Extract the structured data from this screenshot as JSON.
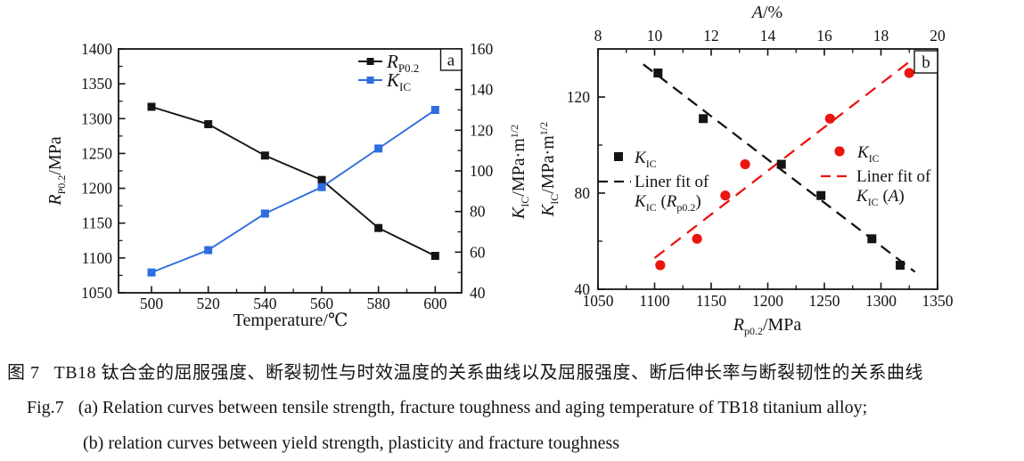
{
  "caption": {
    "zh_label": "图 7",
    "zh_text": "TB18 钛合金的屈服强度、断裂韧性与时效温度的关系曲线以及屈服强度、断后伸长率与断裂韧性的关系曲线",
    "en1_label": "Fig.7",
    "en1_text": "(a) Relation curves between tensile strength, fracture toughness and aging temperature of TB18 titanium alloy;",
    "en2_text": "(b) relation curves between yield strength, plasticity and fracture toughness"
  },
  "colors": {
    "axis": "#141414",
    "black_series": "#141414",
    "blue_series": "#2e6ce0",
    "red_series": "#ea150c"
  },
  "chart_data": [
    {
      "id": "a",
      "type": "line",
      "panel_label": "a",
      "xlabel": "Temperature/℃",
      "x_ticks": [
        500,
        520,
        540,
        560,
        580,
        600
      ],
      "xlim": [
        490,
        609
      ],
      "y_left": {
        "label": "*R*_{P0.2}/MPa",
        "ticks": [
          1050,
          1100,
          1150,
          1200,
          1250,
          1300,
          1350,
          1400
        ],
        "lim": [
          1050,
          1400
        ]
      },
      "y_right": {
        "label": "*K*_{IC}/MPa·m^{1/2}",
        "ticks": [
          40,
          60,
          80,
          100,
          120,
          140,
          160
        ],
        "lim": [
          40,
          160
        ]
      },
      "x": [
        500,
        520,
        540,
        560,
        580,
        600
      ],
      "series": [
        {
          "name": "*R*_{P0.2}",
          "axis": "left",
          "color": "black",
          "marker": "square",
          "values": [
            1317,
            1292,
            1247,
            1212,
            1143,
            1103
          ]
        },
        {
          "name": "*K*_{IC}",
          "axis": "right",
          "color": "blue",
          "marker": "square",
          "values": [
            50,
            61,
            79,
            92,
            111,
            130
          ]
        }
      ],
      "legend_position": "top-right-inside",
      "grid": false
    },
    {
      "id": "b",
      "type": "scatter",
      "panel_label": "b",
      "top_axis": {
        "label": "*A*/%",
        "ticks": [
          8,
          10,
          12,
          14,
          16,
          18,
          20
        ],
        "lim": [
          8,
          20
        ]
      },
      "bottom_axis": {
        "label": "*R*_{p0.2}/MPa",
        "ticks": [
          1050,
          1100,
          1150,
          1200,
          1250,
          1300,
          1350
        ],
        "lim": [
          1050,
          1350
        ]
      },
      "y_axis": {
        "label": "*K*_{IC}/MPa·m^{1/2}",
        "ticks": [
          40,
          80,
          120
        ],
        "minor_ticks": [
          60,
          100,
          140
        ],
        "lim": [
          40,
          140
        ]
      },
      "series": [
        {
          "name": "*K*_{IC}",
          "marker": "square",
          "color": "black",
          "x_axis": "bottom",
          "points": [
            [
              1103,
              130
            ],
            [
              1143,
              111
            ],
            [
              1212,
              92
            ],
            [
              1247,
              79
            ],
            [
              1292,
              61
            ],
            [
              1317,
              50
            ]
          ],
          "fit": {
            "legend_line1": "Liner fit of",
            "legend_line2": "*K*_{IC} (*R*_{p0.2})",
            "draw_range": [
              1090,
              1330
            ]
          }
        },
        {
          "name": "*K*_{IC}",
          "marker": "circle",
          "color": "red",
          "x_axis": "top",
          "points": [
            [
              10.2,
              50
            ],
            [
              11.5,
              61
            ],
            [
              12.5,
              79
            ],
            [
              13.2,
              92
            ],
            [
              16.2,
              111
            ],
            [
              19.0,
              130
            ]
          ],
          "fit": {
            "legend_line1": "Liner fit of",
            "legend_line2": "*K*_{IC} (*A*)",
            "draw_range": [
              10.0,
              19.35
            ]
          }
        }
      ],
      "grid": false
    }
  ]
}
